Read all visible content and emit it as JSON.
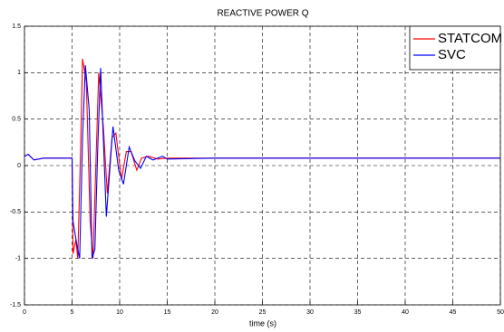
{
  "chart_data": {
    "type": "line",
    "title": "REACTIVE POWER Q",
    "xlabel": "time (s)",
    "xlim": [
      0,
      50
    ],
    "xticks": [
      0,
      5,
      10,
      15,
      20,
      25,
      30,
      35,
      40,
      45,
      50
    ],
    "ylim": [
      -1.5,
      1.5
    ],
    "yticks": [
      -1.5,
      -1,
      -0.5,
      0,
      0.5,
      1,
      1.5
    ],
    "grid": true,
    "legend": "upper right",
    "series": [
      {
        "name": "STATCOM",
        "color": "#ff0000",
        "x": [
          0,
          0.4,
          1,
          2,
          5,
          5.1,
          5.4,
          5.6,
          5.9,
          6.1,
          6.5,
          6.9,
          7.2,
          7.5,
          7.8,
          8.3,
          8.7,
          9.2,
          9.6,
          10.2,
          10.7,
          11.2,
          11.8,
          12.3,
          13,
          14,
          15,
          20,
          30,
          40,
          50
        ],
        "values": [
          0.1,
          0.12,
          0.06,
          0.08,
          0.08,
          -0.95,
          -0.8,
          -1,
          0.2,
          1.15,
          0.9,
          -0.6,
          -1,
          0,
          1.0,
          0.4,
          -0.3,
          0.3,
          0.35,
          -0.15,
          0.15,
          0.15,
          -0.05,
          0.08,
          0.1,
          0.07,
          0.08,
          0.08,
          0.08,
          0.08,
          0.08
        ]
      },
      {
        "name": "SVC",
        "color": "#0000ff",
        "x": [
          0,
          0.4,
          1,
          2,
          5,
          5.1,
          5.5,
          5.8,
          6.1,
          6.4,
          6.8,
          7.1,
          7.4,
          7.7,
          8.0,
          8.6,
          9.3,
          9.9,
          10.4,
          11.0,
          11.6,
          12.2,
          12.8,
          13.5,
          14.5,
          15,
          20,
          30,
          40,
          50
        ],
        "values": [
          0.1,
          0.12,
          0.06,
          0.08,
          0.08,
          -0.6,
          -0.85,
          -1,
          0.3,
          1.08,
          0.6,
          -1,
          -0.9,
          0.2,
          1.05,
          -0.55,
          0.42,
          -0.05,
          -0.2,
          0.2,
          0.05,
          -0.03,
          0.1,
          0.06,
          0.1,
          0.07,
          0.08,
          0.08,
          0.08,
          0.08
        ]
      }
    ]
  }
}
